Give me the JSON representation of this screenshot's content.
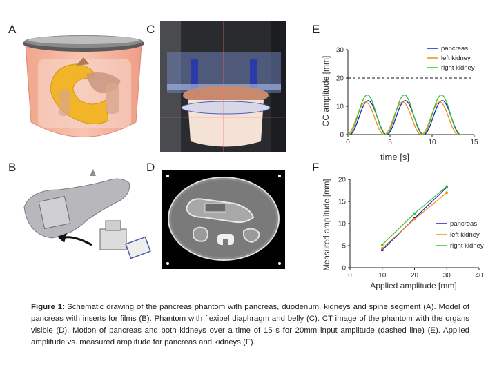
{
  "panels": {
    "a": "A",
    "b": "B",
    "c": "C",
    "d": "D",
    "e": "E",
    "f": "F"
  },
  "caption": {
    "label": "Figure 1",
    "text": ": Schematic drawing of the pancreas phantom with pancreas, duodenum, kidneys and spine segment (A). Model of pancreas with inserts for films (B). Phantom with flexibel diaphragm and belly (C). CT image of the phantom with the organs visible (D). Motion of pancreas and both kidneys over a time of 15 s for 20mm input amplitude (dashed line) (E). Applied amplitude vs. measured amplitude for pancreas and kidneys (F)."
  },
  "colors": {
    "pancreas": "#1f1fbf",
    "left_kidney": "#f28c1a",
    "right_kidney": "#2fc22f"
  },
  "chart_data": [
    {
      "type": "line",
      "xlabel": "time [s]",
      "ylabel": "CC amplitude [mm]",
      "xlim": [
        0,
        15
      ],
      "ylim": [
        0,
        30
      ],
      "xticks": [
        "0",
        "5",
        "10",
        "15"
      ],
      "yticks": [
        "0",
        "10",
        "20",
        "30"
      ],
      "legend_position": "top-right",
      "reference_line": {
        "y": 20,
        "style": "dashed"
      },
      "series": [
        {
          "name": "pancreas",
          "amplitude": 12,
          "period": 4.4,
          "peak_times": [
            2.4,
            6.8,
            11.2
          ]
        },
        {
          "name": "left kidney",
          "amplitude": 11.5,
          "period": 4.4,
          "peak_times": [
            2.1,
            6.5,
            10.9
          ]
        },
        {
          "name": "right kidney",
          "amplitude": 14,
          "period": 4.4,
          "peak_times": [
            2.3,
            6.7,
            11.1
          ]
        }
      ]
    },
    {
      "type": "line",
      "xlabel": "Applied amplitude [mm]",
      "ylabel": "Measured amplitude [mm]",
      "xlim": [
        0,
        40
      ],
      "ylim": [
        0,
        20
      ],
      "xticks": [
        "0",
        "10",
        "20",
        "30",
        "40"
      ],
      "yticks": [
        "0",
        "5",
        "10",
        "15",
        "20"
      ],
      "legend_position": "bottom-right",
      "x": [
        10,
        20,
        30
      ],
      "series": [
        {
          "name": "pancreas",
          "values": [
            4.0,
            11.2,
            18.2
          ]
        },
        {
          "name": "left kidney",
          "values": [
            4.4,
            11.0,
            17.0
          ]
        },
        {
          "name": "right kidney",
          "values": [
            5.2,
            12.3,
            18.4
          ]
        }
      ]
    }
  ]
}
